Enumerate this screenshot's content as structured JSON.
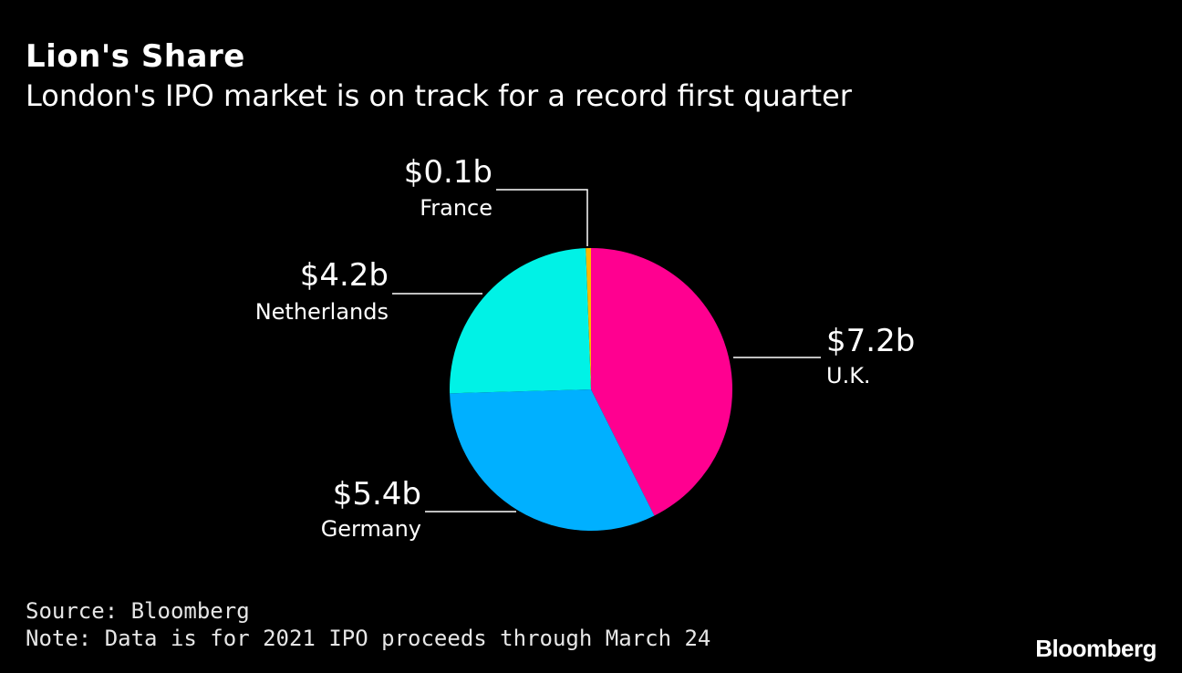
{
  "header": {
    "title": "Lion's Share",
    "subtitle": "London's IPO market is on track for a record first quarter"
  },
  "chart_data": {
    "type": "pie",
    "unit": "b",
    "slices": [
      {
        "name": "U.K.",
        "value": 7.2,
        "label": "$7.2b",
        "color": "#ff0090"
      },
      {
        "name": "Germany",
        "value": 5.4,
        "label": "$5.4b",
        "color": "#00b0ff"
      },
      {
        "name": "Netherlands",
        "value": 4.2,
        "label": "$4.2b",
        "color": "#00f2e6"
      },
      {
        "name": "France",
        "value": 0.1,
        "label": "$0.1b",
        "color": "#ffb800"
      }
    ],
    "start": "top",
    "direction": "clockwise"
  },
  "footer": {
    "source": "Source: Bloomberg",
    "note": "Note: Data is for 2021 IPO proceeds through March 24",
    "logo": "Bloomberg"
  }
}
